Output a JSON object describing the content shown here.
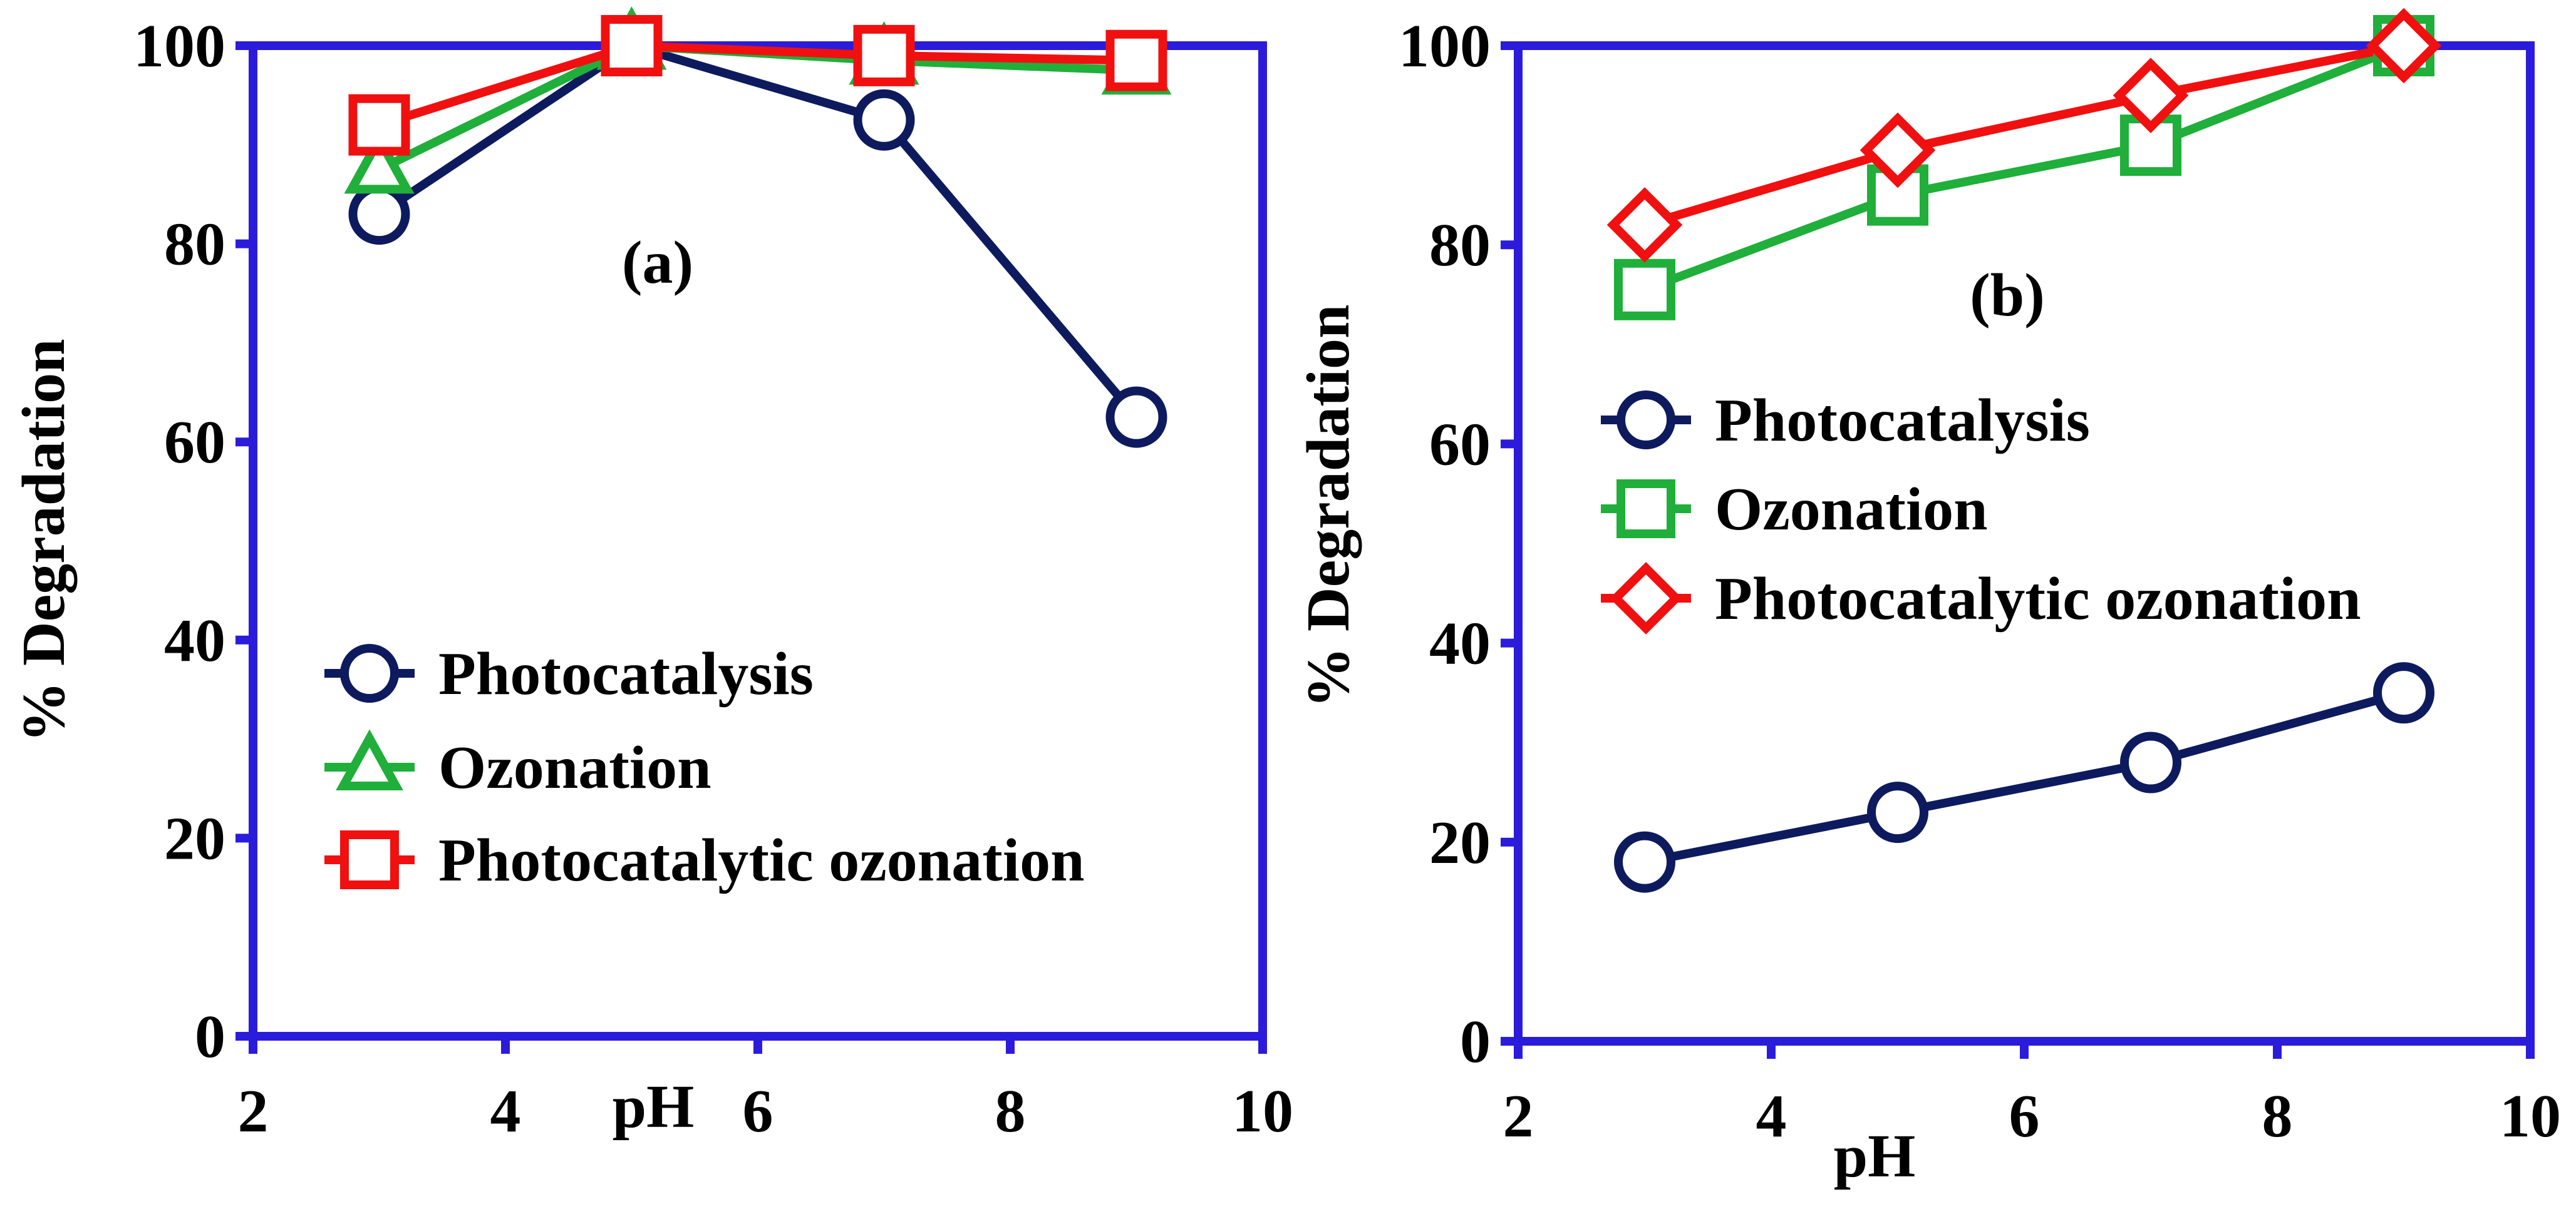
{
  "colors": {
    "frame": "#2B1CDB",
    "photocatalysis": "#0D1B5E",
    "ozonation": "#1FAF3A",
    "photocatalytic_ozonation": "#F01010"
  },
  "chart_data": [
    {
      "type": "line",
      "panel_label": "(a)",
      "xlabel": "pH",
      "ylabel": "%  Degradation",
      "xlim": [
        2,
        10
      ],
      "ylim": [
        0,
        100
      ],
      "x_ticks": [
        "2",
        "4",
        "6",
        "8",
        "10"
      ],
      "y_ticks": [
        "0",
        "20",
        "40",
        "60",
        "80",
        "100"
      ],
      "legend_position": "bottom-left",
      "series": [
        {
          "name": "Photocatalysis",
          "color_key": "photocatalysis",
          "marker": "circle",
          "x": [
            3,
            5,
            7,
            9
          ],
          "values": [
            83,
            100,
            92.5,
            62.5
          ]
        },
        {
          "name": "Ozonation",
          "color_key": "ozonation",
          "marker": "triangle",
          "x": [
            3,
            5,
            7,
            9
          ],
          "values": [
            87.5,
            100,
            98.5,
            97.5
          ]
        },
        {
          "name": "Photocatalytic ozonation",
          "color_key": "photocatalytic_ozonation",
          "marker": "square",
          "x": [
            3,
            5,
            7,
            9
          ],
          "values": [
            92,
            100,
            99,
            98.5
          ]
        }
      ]
    },
    {
      "type": "line",
      "panel_label": "(b)",
      "xlabel": "pH",
      "ylabel": "% Degradation",
      "xlim": [
        2,
        10
      ],
      "ylim": [
        0,
        100
      ],
      "x_ticks": [
        "2",
        "4",
        "6",
        "8",
        "10"
      ],
      "y_ticks": [
        "0",
        "20",
        "40",
        "60",
        "80",
        "100"
      ],
      "legend_position": "middle-left",
      "series": [
        {
          "name": "Photocatalysis",
          "color_key": "photocatalysis",
          "marker": "circle",
          "x": [
            3,
            5,
            7,
            9
          ],
          "values": [
            18,
            23,
            28,
            35
          ]
        },
        {
          "name": "Ozonation",
          "color_key": "ozonation",
          "marker": "square",
          "x": [
            3,
            5,
            7,
            9
          ],
          "values": [
            75.5,
            85,
            90,
            100
          ]
        },
        {
          "name": "Photocatalytic ozonation",
          "color_key": "photocatalytic_ozonation",
          "marker": "diamond",
          "x": [
            3,
            5,
            7,
            9
          ],
          "values": [
            82,
            89.5,
            95,
            100
          ]
        }
      ]
    }
  ]
}
